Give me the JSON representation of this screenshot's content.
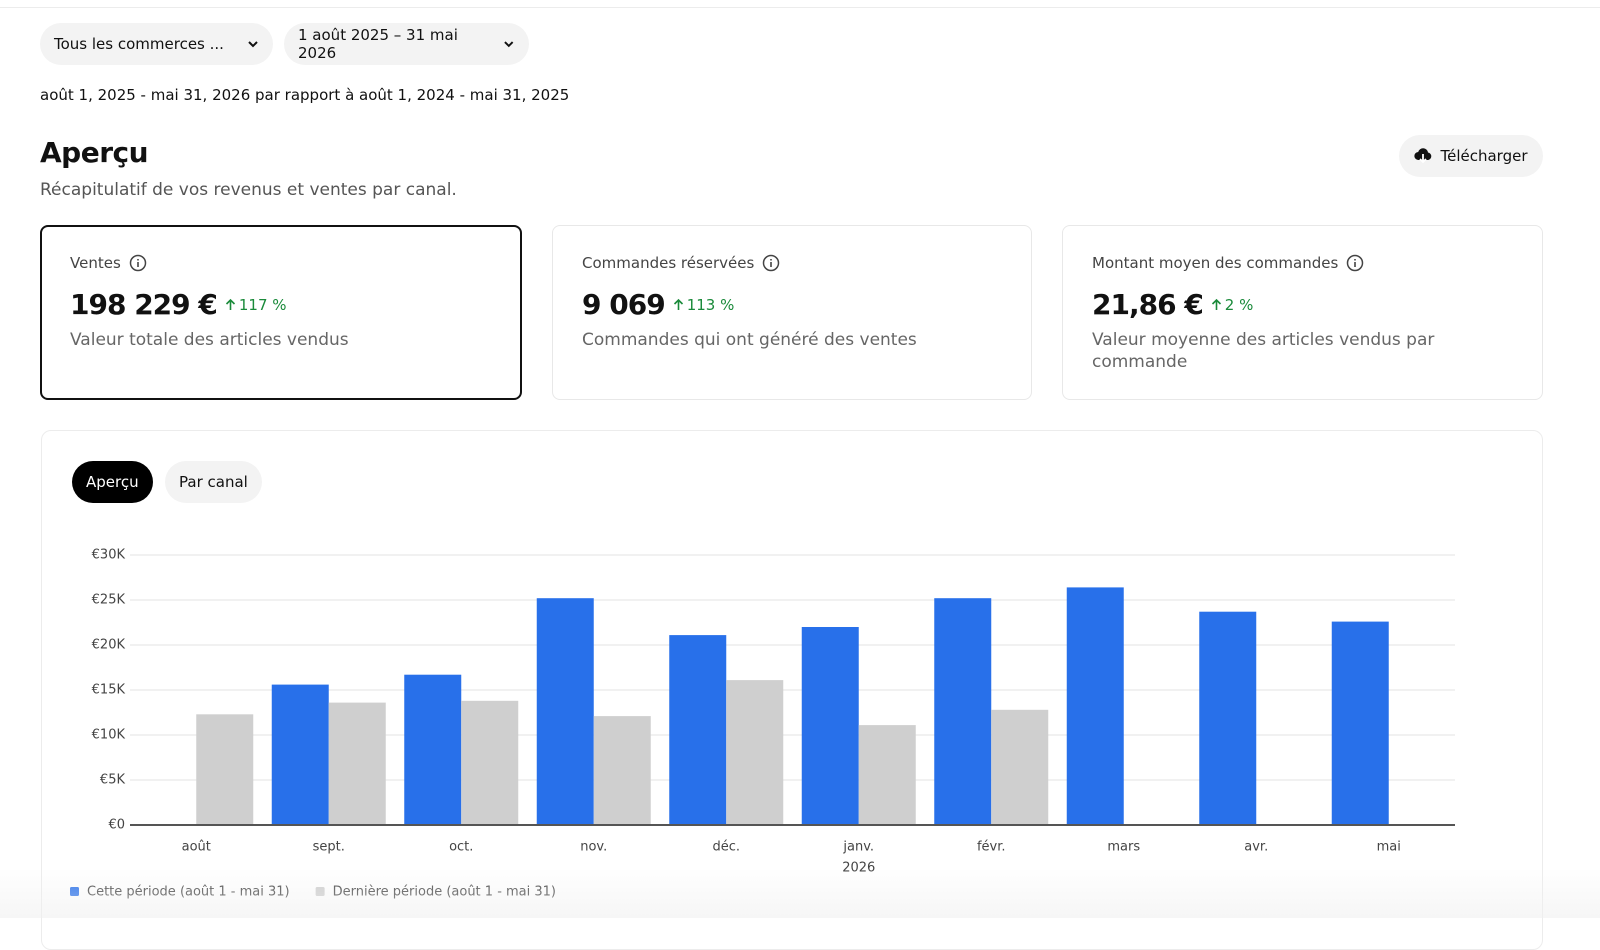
{
  "filters": {
    "store": "Tous les commerces ...",
    "date_range": "1 août 2025 – 31 mai 2026"
  },
  "comparison": "août 1, 2025 - mai 31, 2026 par rapport à août 1, 2024 - mai 31, 2025",
  "header": {
    "title": "Aperçu",
    "subtitle": "Récapitulatif de vos revenus et ventes par canal.",
    "download": "Télécharger"
  },
  "cards": [
    {
      "label": "Ventes",
      "value": "198 229 €",
      "change": "117 %",
      "description": "Valeur totale des articles vendus"
    },
    {
      "label": "Commandes réservées",
      "value": "9 069",
      "change": "113 %",
      "description": "Commandes qui ont généré des ventes"
    },
    {
      "label": "Montant moyen des commandes",
      "value": "21,86 €",
      "change": "2 %",
      "description": "Valeur moyenne des articles vendus par commande"
    }
  ],
  "tabs": [
    "Aperçu",
    "Par canal"
  ],
  "chart_data": {
    "type": "bar",
    "categories": [
      "août",
      "sept.",
      "oct.",
      "nov.",
      "déc.",
      "janv.",
      "févr.",
      "mars",
      "avr.",
      "mai"
    ],
    "x_sublabels": [
      null,
      null,
      null,
      null,
      null,
      "2026",
      null,
      null,
      null,
      null
    ],
    "series": [
      {
        "name": "Cette période (août 1 - mai 31)",
        "color": "#2870ea",
        "values": [
          null,
          15600,
          16700,
          25200,
          21100,
          22000,
          25200,
          26400,
          23700,
          22600
        ]
      },
      {
        "name": "Dernière période (août 1 - mai 31)",
        "color": "#cfcfcf",
        "values": [
          12300,
          13600,
          13800,
          12100,
          16100,
          11100,
          12800,
          null,
          null,
          null
        ]
      }
    ],
    "ylim": [
      0,
      30000
    ],
    "yticks": [
      {
        "value": 0,
        "label": "€0"
      },
      {
        "value": 5000,
        "label": "€5K"
      },
      {
        "value": 10000,
        "label": "€10K"
      },
      {
        "value": 15000,
        "label": "€15K"
      },
      {
        "value": 20000,
        "label": "€20K"
      },
      {
        "value": 25000,
        "label": "€25K"
      },
      {
        "value": 30000,
        "label": "€30K"
      }
    ],
    "grid": true,
    "legend": "bottom-left"
  }
}
